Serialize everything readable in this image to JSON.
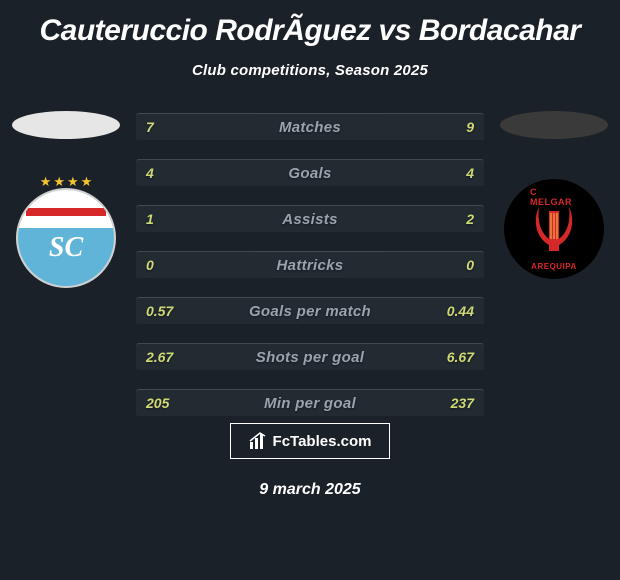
{
  "background_color": "#1a2128",
  "text_color": "#ffffff",
  "title": "Cauteruccio RodrÃ­guez vs Bordacahar",
  "title_fontsize": 30,
  "subtitle": "Club competitions, Season 2025",
  "subtitle_fontsize": 15,
  "player_left": {
    "head_color": "#e6e6e6",
    "club_name": "Sporting Cristal"
  },
  "player_right": {
    "head_color": "#3a3a3a",
    "club_name": "FBC Melgar"
  },
  "stats": {
    "row_bg": "#222a32",
    "label_color": "#9aa3ac",
    "value_color": "#ced974",
    "label_fontsize": 15,
    "value_fontsize": 14,
    "rows": [
      {
        "label": "Matches",
        "left": "7",
        "right": "9"
      },
      {
        "label": "Goals",
        "left": "4",
        "right": "4"
      },
      {
        "label": "Assists",
        "left": "1",
        "right": "2"
      },
      {
        "label": "Hattricks",
        "left": "0",
        "right": "0"
      },
      {
        "label": "Goals per match",
        "left": "0.57",
        "right": "0.44"
      },
      {
        "label": "Shots per goal",
        "left": "2.67",
        "right": "6.67"
      },
      {
        "label": "Min per goal",
        "left": "205",
        "right": "237"
      }
    ]
  },
  "brand": {
    "text": "FcTables.com",
    "border_color": "#ffffff"
  },
  "date": "9 march 2025"
}
